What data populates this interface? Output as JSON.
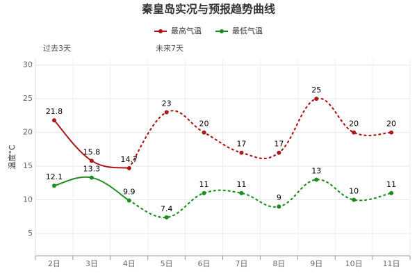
{
  "chart_data": {
    "type": "line",
    "title": "秦皇岛实况与预报趋势曲线",
    "annotations": [
      "过去3天",
      "未来7天"
    ],
    "y_label": "温度°C",
    "categories": [
      "2日",
      "3日",
      "4日",
      "5日",
      "6日",
      "7日",
      "8日",
      "9日",
      "10日",
      "11日"
    ],
    "series": [
      {
        "name": "最高气温",
        "color": "#a81818",
        "values": [
          21.8,
          15.8,
          14.7,
          23,
          20,
          17,
          17,
          25,
          20,
          20
        ]
      },
      {
        "name": "最低气温",
        "color": "#1e8c1e",
        "values": [
          12.1,
          13.3,
          9.9,
          7.4,
          11,
          11,
          9,
          13,
          10,
          11
        ]
      }
    ],
    "dotted_from": 2,
    "ylim": [
      1.7,
      31
    ],
    "yticks": [
      5,
      10,
      15,
      20,
      25,
      30
    ],
    "grid": true,
    "legend": "top"
  }
}
